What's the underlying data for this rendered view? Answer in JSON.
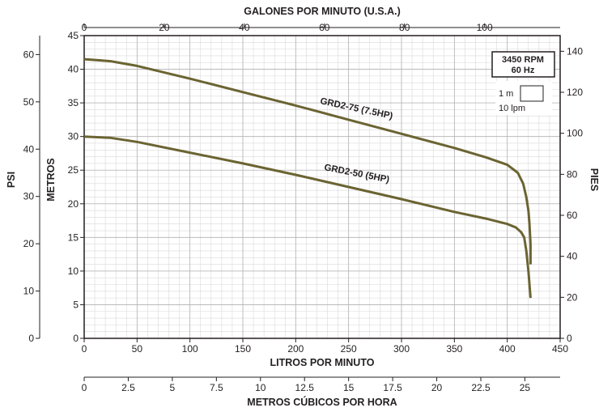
{
  "chart_data": {
    "type": "line",
    "x_primary": {
      "label": "LITROS POR MINUTO",
      "range": [
        0,
        450
      ],
      "ticks": [
        "0",
        "50",
        "100",
        "150",
        "200",
        "250",
        "300",
        "350",
        "400",
        "450"
      ]
    },
    "x_top": {
      "label": "GALONES POR MINUTO (U.S.A.)",
      "range_gpm": [
        0,
        118.88
      ],
      "ticks": [
        "0",
        "20",
        "40",
        "60",
        "80",
        "100"
      ]
    },
    "x_bottom2": {
      "label": "METROS CÚBICOS POR HORA",
      "range_m3h": [
        0,
        27
      ],
      "ticks": [
        "0",
        "2.5",
        "5",
        "7.5",
        "10",
        "12.5",
        "15",
        "17.5",
        "20",
        "22.5",
        "25"
      ]
    },
    "y_meters": {
      "label": "METROS",
      "range": [
        0,
        45
      ],
      "ticks": [
        "0",
        "5",
        "10",
        "15",
        "20",
        "25",
        "30",
        "35",
        "40",
        "45"
      ]
    },
    "y_psi": {
      "label": "PSI",
      "range_psi": [
        0,
        64
      ],
      "ticks": [
        "0",
        "10",
        "20",
        "30",
        "40",
        "50",
        "60"
      ]
    },
    "y_feet": {
      "label": "PIES",
      "range_ft": [
        0,
        147.6
      ],
      "ticks": [
        "0",
        "20",
        "40",
        "60",
        "80",
        "100",
        "120",
        "140"
      ]
    },
    "grid": true,
    "legend": {
      "rpm": "3450 RPM",
      "hz": "60 Hz",
      "box_v": "1 m",
      "box_h": "10 lpm"
    },
    "series": [
      {
        "name": "GRD2-75 (7.5HP)",
        "color": "#6b6432",
        "x": [
          0,
          25,
          50,
          100,
          150,
          200,
          250,
          300,
          350,
          380,
          400,
          410,
          415,
          418,
          420,
          421,
          422,
          422
        ],
        "y": [
          41.5,
          41.2,
          40.5,
          38.6,
          36.6,
          34.6,
          32.5,
          30.4,
          28.3,
          26.9,
          25.8,
          24.6,
          23.0,
          21.0,
          19.0,
          17.0,
          14.0,
          11.0
        ]
      },
      {
        "name": "GRD2-50 (5HP)",
        "color": "#6b6432",
        "x": [
          0,
          25,
          50,
          100,
          150,
          200,
          250,
          300,
          350,
          380,
          400,
          408,
          413,
          416,
          418,
          420,
          421,
          422
        ],
        "y": [
          30.0,
          29.8,
          29.2,
          27.6,
          26.0,
          24.3,
          22.5,
          20.7,
          18.8,
          17.8,
          17.0,
          16.5,
          15.8,
          15.0,
          13.0,
          10.0,
          8.0,
          6.0
        ]
      }
    ]
  }
}
